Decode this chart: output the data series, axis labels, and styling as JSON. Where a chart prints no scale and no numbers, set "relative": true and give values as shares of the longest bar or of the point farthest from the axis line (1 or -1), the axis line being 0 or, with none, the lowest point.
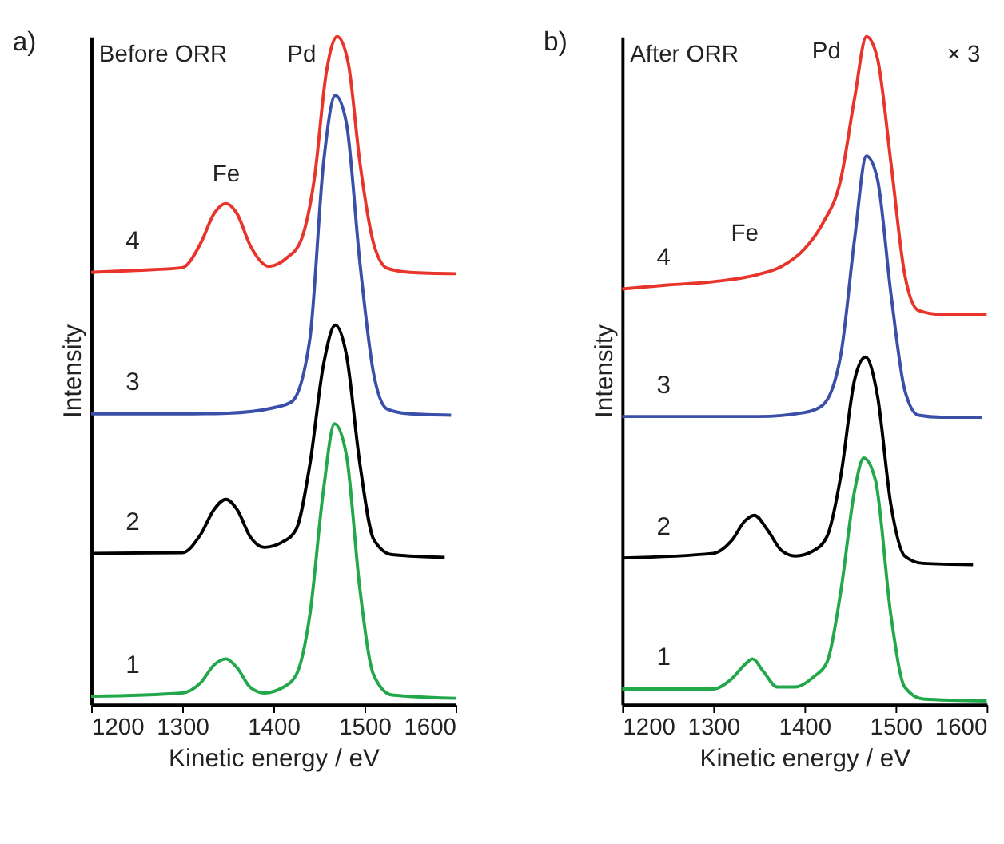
{
  "chart_data": [
    {
      "type": "line",
      "title": "a)",
      "xlabel": "Kinetic energy / eV",
      "ylabel": "Intensity",
      "relative": true,
      "xlim": [
        1200,
        1600
      ],
      "xticks": [
        1200,
        1300,
        1400,
        1500,
        1600
      ],
      "tick_labels": "x",
      "grid": false,
      "legend": false,
      "marker": "none",
      "line_style": "solid",
      "annotations": [
        "Before ORR",
        "Fe",
        "Pd"
      ],
      "series": [
        {
          "name": "1",
          "color": "#22a84a",
          "x": [
            1200,
            1300,
            1320,
            1335,
            1348,
            1360,
            1375,
            1390,
            1410,
            1425,
            1440,
            1455,
            1467,
            1480,
            1495,
            1510,
            1530,
            1600
          ],
          "values": [
            0.012,
            0.017,
            0.032,
            0.059,
            0.068,
            0.055,
            0.025,
            0.017,
            0.025,
            0.044,
            0.134,
            0.322,
            0.42,
            0.374,
            0.171,
            0.044,
            0.014,
            0.009
          ]
        },
        {
          "name": "2",
          "color": "#000000",
          "x": [
            1200,
            1300,
            1320,
            1335,
            1348,
            1360,
            1375,
            1390,
            1410,
            1425,
            1440,
            1455,
            1468,
            1480,
            1495,
            1510,
            1530,
            1588
          ],
          "values": [
            0.226,
            0.227,
            0.254,
            0.292,
            0.307,
            0.292,
            0.25,
            0.235,
            0.243,
            0.262,
            0.359,
            0.509,
            0.568,
            0.524,
            0.359,
            0.247,
            0.224,
            0.22
          ]
        },
        {
          "name": "3",
          "color": "#3a4fa8",
          "x": [
            1200,
            1300,
            1350,
            1400,
            1420,
            1440,
            1455,
            1468,
            1480,
            1495,
            1510,
            1525,
            1550,
            1595
          ],
          "values": [
            0.435,
            0.435,
            0.436,
            0.444,
            0.453,
            0.547,
            0.811,
            0.912,
            0.871,
            0.66,
            0.495,
            0.442,
            0.435,
            0.433
          ]
        },
        {
          "name": "4",
          "color": "#e8342a",
          "x": [
            1200,
            1250,
            1300,
            1320,
            1335,
            1348,
            1360,
            1375,
            1395,
            1415,
            1430,
            1445,
            1458,
            1470,
            1482,
            1495,
            1510,
            1525,
            1550,
            1600
          ],
          "values": [
            0.647,
            0.65,
            0.654,
            0.69,
            0.735,
            0.75,
            0.735,
            0.686,
            0.656,
            0.669,
            0.694,
            0.788,
            0.946,
            1.0,
            0.961,
            0.81,
            0.69,
            0.653,
            0.647,
            0.645
          ]
        }
      ]
    },
    {
      "type": "line",
      "title": "b)",
      "xlabel": "Kinetic energy / eV",
      "ylabel": "Intensity",
      "relative": true,
      "xlim": [
        1200,
        1600
      ],
      "xticks": [
        1200,
        1300,
        1400,
        1500,
        1600
      ],
      "tick_labels": "x",
      "grid": false,
      "legend": false,
      "marker": "none",
      "line_style": "solid",
      "annotations": [
        "After ORR",
        "× 3",
        "Fe",
        "Pd"
      ],
      "series": [
        {
          "name": "1",
          "color": "#22a84a",
          "x": [
            1200,
            1300,
            1320,
            1335,
            1343,
            1355,
            1370,
            1390,
            1410,
            1425,
            1440,
            1455,
            1465,
            1478,
            1495,
            1510,
            1530,
            1600
          ],
          "values": [
            0.023,
            0.023,
            0.038,
            0.06,
            0.068,
            0.049,
            0.026,
            0.026,
            0.041,
            0.064,
            0.17,
            0.32,
            0.369,
            0.335,
            0.132,
            0.026,
            0.008,
            0.005
          ]
        },
        {
          "name": "2",
          "color": "#000000",
          "x": [
            1200,
            1300,
            1320,
            1335,
            1345,
            1360,
            1375,
            1390,
            1410,
            1425,
            1440,
            1455,
            1467,
            1480,
            1495,
            1510,
            1530,
            1585
          ],
          "values": [
            0.219,
            0.226,
            0.245,
            0.275,
            0.283,
            0.26,
            0.23,
            0.222,
            0.23,
            0.252,
            0.343,
            0.486,
            0.52,
            0.463,
            0.298,
            0.222,
            0.211,
            0.209
          ]
        },
        {
          "name": "3",
          "color": "#3a4fa8",
          "x": [
            1200,
            1300,
            1350,
            1400,
            1420,
            1440,
            1455,
            1468,
            1480,
            1495,
            1510,
            1525,
            1550,
            1595
          ],
          "values": [
            0.431,
            0.431,
            0.431,
            0.437,
            0.448,
            0.524,
            0.697,
            0.821,
            0.787,
            0.614,
            0.471,
            0.433,
            0.43,
            0.43
          ]
        },
        {
          "name": "4",
          "color": "#e8342a",
          "x": [
            1200,
            1250,
            1300,
            1350,
            1375,
            1400,
            1420,
            1440,
            1455,
            1468,
            1480,
            1495,
            1510,
            1525,
            1550,
            1600
          ],
          "values": [
            0.622,
            0.628,
            0.633,
            0.644,
            0.656,
            0.682,
            0.72,
            0.787,
            0.908,
            1.0,
            0.968,
            0.81,
            0.644,
            0.59,
            0.584,
            0.584
          ]
        }
      ]
    }
  ]
}
